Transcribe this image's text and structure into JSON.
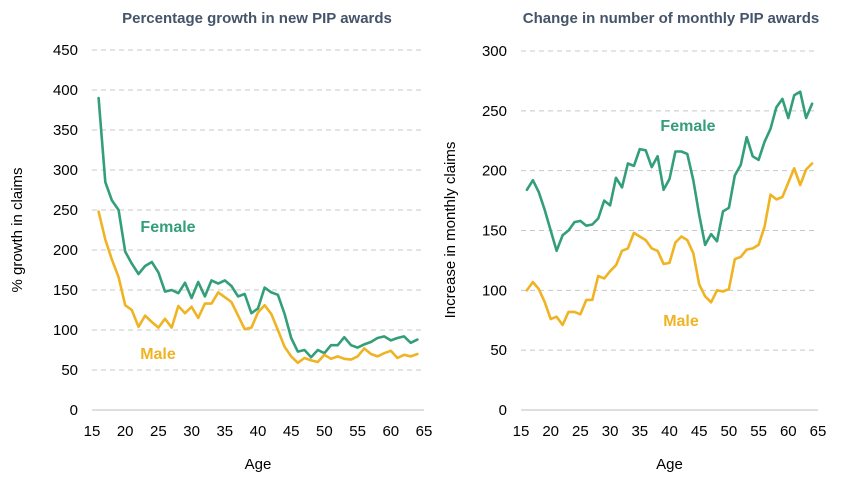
{
  "colors": {
    "female": "#339F78",
    "male": "#F0B323",
    "title": "#44546A",
    "grid": "#C8C8C8"
  },
  "chart_data": [
    {
      "type": "line",
      "title": "Percentage growth in new PIP awards",
      "xlabel": "Age",
      "ylabel": "% growth in claims",
      "xlim": [
        15,
        65
      ],
      "ylim": [
        0,
        450
      ],
      "xticks": [
        15,
        20,
        25,
        30,
        35,
        40,
        45,
        50,
        55,
        60,
        65
      ],
      "yticks": [
        0,
        50,
        100,
        150,
        200,
        250,
        300,
        350,
        400,
        450
      ],
      "grid": true,
      "x": [
        16,
        17,
        18,
        19,
        20,
        21,
        22,
        23,
        24,
        25,
        26,
        27,
        28,
        29,
        30,
        31,
        32,
        33,
        34,
        35,
        36,
        37,
        38,
        39,
        40,
        41,
        42,
        43,
        44,
        45,
        46,
        47,
        48,
        49,
        50,
        51,
        52,
        53,
        54,
        55,
        56,
        57,
        58,
        59,
        60,
        61,
        62,
        63,
        64
      ],
      "series": [
        {
          "name": "Female",
          "label": "Female",
          "values": [
            390,
            285,
            262,
            250,
            198,
            183,
            170,
            180,
            185,
            172,
            148,
            150,
            146,
            159,
            140,
            160,
            142,
            162,
            158,
            162,
            155,
            142,
            145,
            121,
            127,
            153,
            147,
            144,
            120,
            90,
            73,
            75,
            66,
            75,
            71,
            81,
            81,
            91,
            81,
            78,
            82,
            85,
            90,
            92,
            87,
            90,
            92,
            84,
            88
          ]
        },
        {
          "name": "Male",
          "label": "Male",
          "values": [
            248,
            213,
            188,
            166,
            131,
            125,
            104,
            118,
            110,
            103,
            114,
            103,
            130,
            121,
            129,
            115,
            133,
            133,
            147,
            141,
            135,
            118,
            101,
            103,
            122,
            131,
            120,
            100,
            79,
            67,
            59,
            65,
            62,
            60,
            69,
            64,
            67,
            64,
            63,
            67,
            77,
            70,
            67,
            71,
            74,
            65,
            69,
            67,
            70
          ]
        }
      ]
    },
    {
      "type": "line",
      "title": "Change in number of monthly PIP awards",
      "xlabel": "Age",
      "ylabel": "Increase in monthly claims",
      "xlim": [
        15,
        65
      ],
      "ylim": [
        0,
        300
      ],
      "xticks": [
        15,
        20,
        25,
        30,
        35,
        40,
        45,
        50,
        55,
        60,
        65
      ],
      "yticks": [
        0,
        50,
        100,
        150,
        200,
        250,
        300
      ],
      "grid": true,
      "x": [
        16,
        17,
        18,
        19,
        20,
        21,
        22,
        23,
        24,
        25,
        26,
        27,
        28,
        29,
        30,
        31,
        32,
        33,
        34,
        35,
        36,
        37,
        38,
        39,
        40,
        41,
        42,
        43,
        44,
        45,
        46,
        47,
        48,
        49,
        50,
        51,
        52,
        53,
        54,
        55,
        56,
        57,
        58,
        59,
        60,
        61,
        62,
        63,
        64
      ],
      "series": [
        {
          "name": "Female",
          "label": "Female",
          "values": [
            184,
            192,
            182,
            167,
            150,
            133,
            146,
            150,
            157,
            158,
            154,
            155,
            160,
            175,
            171,
            194,
            186,
            206,
            204,
            218,
            217,
            203,
            212,
            184,
            193,
            216,
            216,
            214,
            192,
            163,
            138,
            147,
            141,
            166,
            169,
            196,
            205,
            228,
            212,
            209,
            224,
            235,
            253,
            260,
            244,
            263,
            266,
            244,
            256
          ]
        },
        {
          "name": "Male",
          "label": "Male",
          "values": [
            100,
            107,
            101,
            90,
            76,
            78,
            71,
            82,
            82,
            80,
            92,
            92,
            112,
            110,
            116,
            121,
            133,
            135,
            148,
            145,
            142,
            135,
            133,
            122,
            123,
            140,
            145,
            142,
            131,
            105,
            95,
            90,
            100,
            99,
            101,
            126,
            128,
            134,
            135,
            138,
            153,
            180,
            176,
            178,
            190,
            202,
            188,
            201,
            206
          ]
        }
      ]
    }
  ]
}
